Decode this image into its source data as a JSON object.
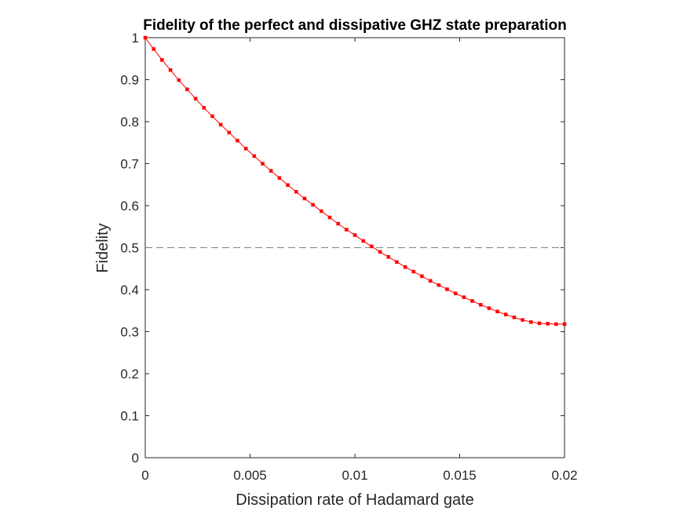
{
  "chart_data": {
    "type": "line",
    "title": "Fidelity of the perfect and dissipative GHZ state preparation",
    "xlabel": "Dissipation rate of Hadamard gate",
    "ylabel": "Fidelity",
    "xlim": [
      0,
      0.02
    ],
    "ylim": [
      0,
      1
    ],
    "xticks": [
      0,
      0.005,
      0.01,
      0.015,
      0.02
    ],
    "xtick_labels": [
      "0",
      "0.005",
      "0.01",
      "0.015",
      "0.02"
    ],
    "yticks": [
      0,
      0.1,
      0.2,
      0.3,
      0.4,
      0.5,
      0.6,
      0.7,
      0.8,
      0.9,
      1
    ],
    "ytick_labels": [
      "0",
      "0.1",
      "0.2",
      "0.3",
      "0.4",
      "0.5",
      "0.6",
      "0.7",
      "0.8",
      "0.9",
      "1"
    ],
    "grid": false,
    "series": [
      {
        "color": "#ff0000",
        "marker": "square",
        "x": [
          0,
          0.0004,
          0.0008,
          0.0012,
          0.0016,
          0.002,
          0.0024,
          0.0028,
          0.0032,
          0.0036,
          0.004,
          0.0044,
          0.0048,
          0.0052,
          0.0056,
          0.006,
          0.0064,
          0.0068,
          0.0072,
          0.0076,
          0.008,
          0.0084,
          0.0088,
          0.0092,
          0.0096,
          0.01,
          0.0104,
          0.0108,
          0.0112,
          0.0116,
          0.012,
          0.0124,
          0.0128,
          0.0132,
          0.0136,
          0.014,
          0.0144,
          0.0148,
          0.0152,
          0.0156,
          0.016,
          0.0164,
          0.0168,
          0.0172,
          0.0176,
          0.018,
          0.0184,
          0.0188,
          0.0192,
          0.0196,
          0.02
        ],
        "y": [
          1.0,
          0.973,
          0.947,
          0.923,
          0.899,
          0.877,
          0.855,
          0.833,
          0.813,
          0.793,
          0.774,
          0.755,
          0.736,
          0.718,
          0.7,
          0.683,
          0.666,
          0.649,
          0.633,
          0.617,
          0.602,
          0.587,
          0.572,
          0.557,
          0.543,
          0.53,
          0.516,
          0.503,
          0.49,
          0.478,
          0.466,
          0.454,
          0.443,
          0.432,
          0.421,
          0.411,
          0.401,
          0.391,
          0.382,
          0.373,
          0.364,
          0.356,
          0.348,
          0.341,
          0.334,
          0.328,
          0.323,
          0.32,
          0.319,
          0.318,
          0.318
        ]
      }
    ],
    "reference_line": {
      "y": 0.5,
      "style": "dashed",
      "color": "#808080"
    }
  }
}
